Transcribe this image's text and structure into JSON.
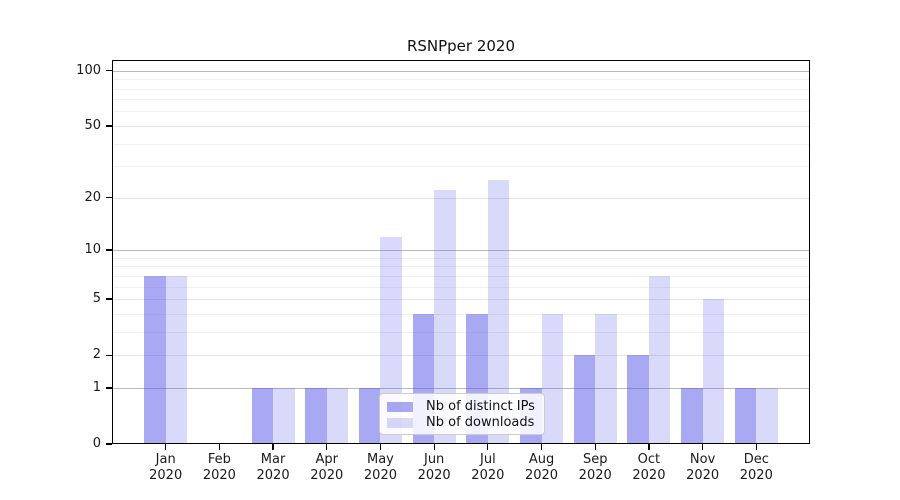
{
  "title": "RSNPper 2020",
  "colors": {
    "bar_distinct_ips": "rgba(82,82,232,0.50)",
    "bar_downloads": "rgba(82,82,232,0.22)",
    "axis": "#000000",
    "grid_major": "#b9b9c2",
    "grid_labeled": "#e4e4ea",
    "grid_minor": "#f0f0f4",
    "background": "#ffffff"
  },
  "chart_data": {
    "type": "bar",
    "title": "RSNPper 2020",
    "categories": [
      "Jan 2020",
      "Feb 2020",
      "Mar 2020",
      "Apr 2020",
      "May 2020",
      "Jun 2020",
      "Jul 2020",
      "Aug 2020",
      "Sep 2020",
      "Oct 2020",
      "Nov 2020",
      "Dec 2020"
    ],
    "months": [
      "Jan",
      "Feb",
      "Mar",
      "Apr",
      "May",
      "Jun",
      "Jul",
      "Aug",
      "Sep",
      "Oct",
      "Nov",
      "Dec"
    ],
    "year_label": "2020",
    "series": [
      {
        "name": "Nb of distinct IPs",
        "values": [
          7,
          0,
          1,
          1,
          1,
          4,
          4,
          1,
          2,
          2,
          1,
          1
        ]
      },
      {
        "name": "Nb of downloads",
        "values": [
          7,
          0,
          1,
          1,
          12,
          22,
          25,
          4,
          4,
          7,
          5,
          1
        ]
      }
    ],
    "xlabel": "",
    "ylabel": "",
    "yscale": "symlog",
    "ylim": [
      0,
      114.3
    ],
    "yticks": [
      0,
      1,
      2,
      5,
      10,
      20,
      50,
      100
    ],
    "ytick_major": [
      1,
      10,
      100
    ],
    "minor_gridlines": [
      3,
      4,
      6,
      7,
      8,
      9,
      30,
      40,
      60,
      70,
      80,
      90
    ],
    "grid": "on",
    "legend_position": "inside lower-center"
  }
}
